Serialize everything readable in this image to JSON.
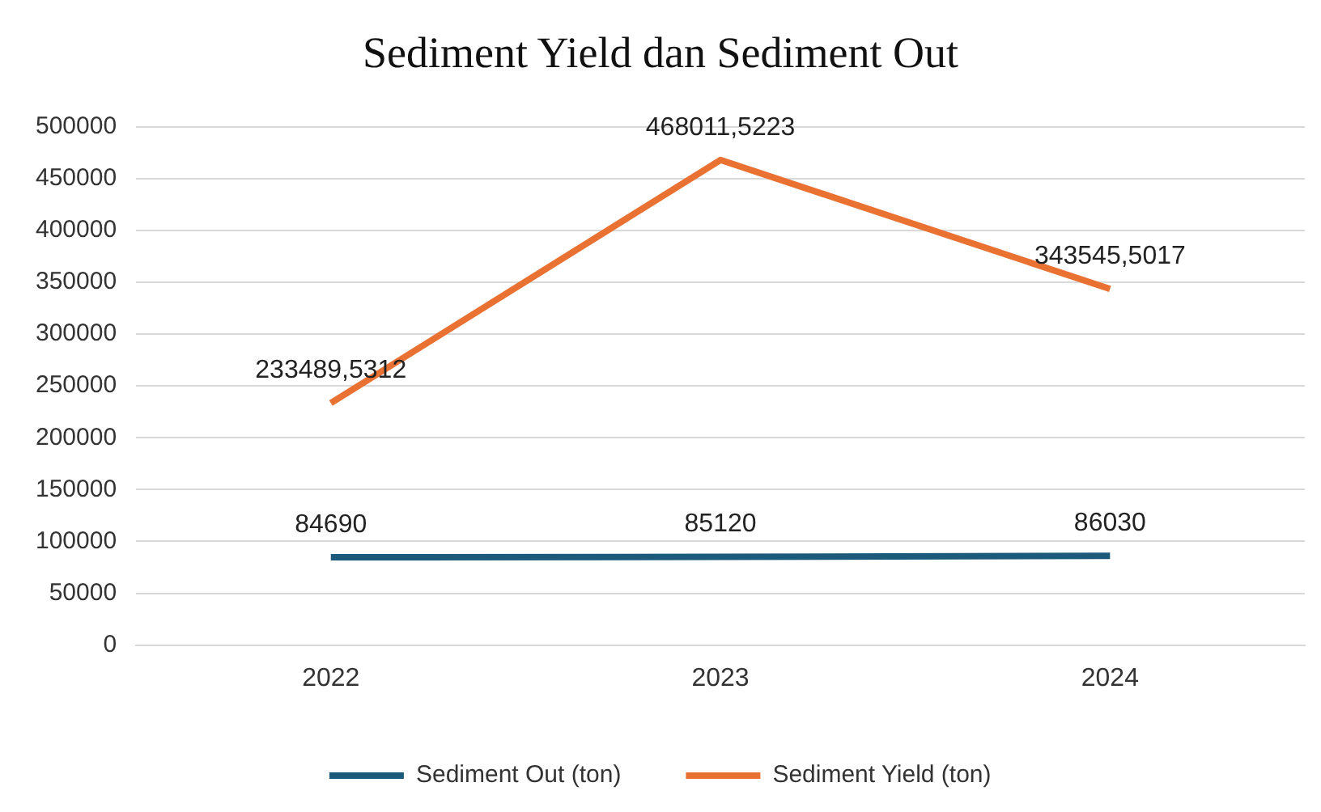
{
  "chart_data": {
    "type": "line",
    "title": "Sediment Yield dan Sediment Out",
    "categories": [
      "2022",
      "2023",
      "2024"
    ],
    "series": [
      {
        "name": "Sediment Out (ton)",
        "color": "#1b5a7a",
        "values": [
          84690,
          85120,
          86030
        ],
        "value_labels": [
          "84690",
          "85120",
          "86030"
        ]
      },
      {
        "name": "Sediment Yield (ton)",
        "color": "#e97132",
        "values": [
          233489.5312,
          468011.5223,
          343545.5017
        ],
        "value_labels": [
          "233489,5312",
          "468011,5223",
          "343545,5017"
        ]
      }
    ],
    "ylim": [
      0,
      500000
    ],
    "yticks": [
      0,
      50000,
      100000,
      150000,
      200000,
      250000,
      300000,
      350000,
      400000,
      450000,
      500000
    ],
    "grid": "y",
    "legend": "bottom",
    "marker": "none",
    "line_style": "solid"
  }
}
